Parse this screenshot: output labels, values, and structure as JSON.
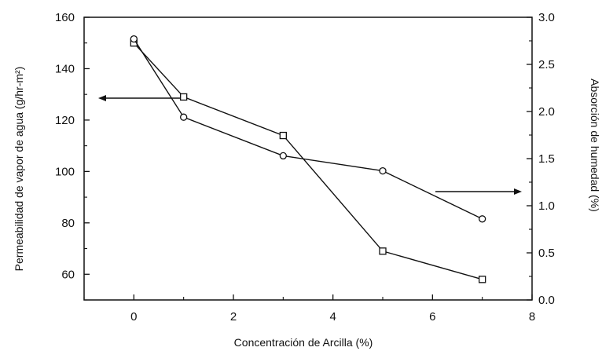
{
  "chart_data": {
    "type": "line",
    "xlabel": "Concentración de Arcilla (%)",
    "ylabel_left": "Permeabilidad de vapor de agua (g/hr-m²)",
    "ylabel_right": "Absorción de humedad (%)",
    "xlim": [
      -1,
      8
    ],
    "ylim_left": [
      50,
      160
    ],
    "ylim_right": [
      0.0,
      3.0
    ],
    "x_ticks": [
      "0",
      "2",
      "4",
      "6",
      "8"
    ],
    "y_left_ticks": [
      "60",
      "80",
      "100",
      "120",
      "140",
      "160"
    ],
    "y_right_ticks": [
      "0.0",
      "0.5",
      "1.0",
      "1.5",
      "2.0",
      "2.5",
      "3.0"
    ],
    "grid": false,
    "legend": "none",
    "series": [
      {
        "marker": "square",
        "axis": "left",
        "x": [
          0,
          1,
          3,
          5,
          7
        ],
        "values": [
          150,
          129,
          114,
          69,
          58
        ]
      },
      {
        "marker": "circle",
        "axis": "right",
        "x": [
          0,
          1,
          3,
          5,
          7
        ],
        "values": [
          2.77,
          1.94,
          1.53,
          1.37,
          0.86
        ]
      }
    ],
    "annotations": [
      {
        "type": "arrow",
        "direction": "left",
        "meaning": "points to left axis"
      },
      {
        "type": "arrow",
        "direction": "right",
        "meaning": "points to right axis"
      }
    ]
  }
}
